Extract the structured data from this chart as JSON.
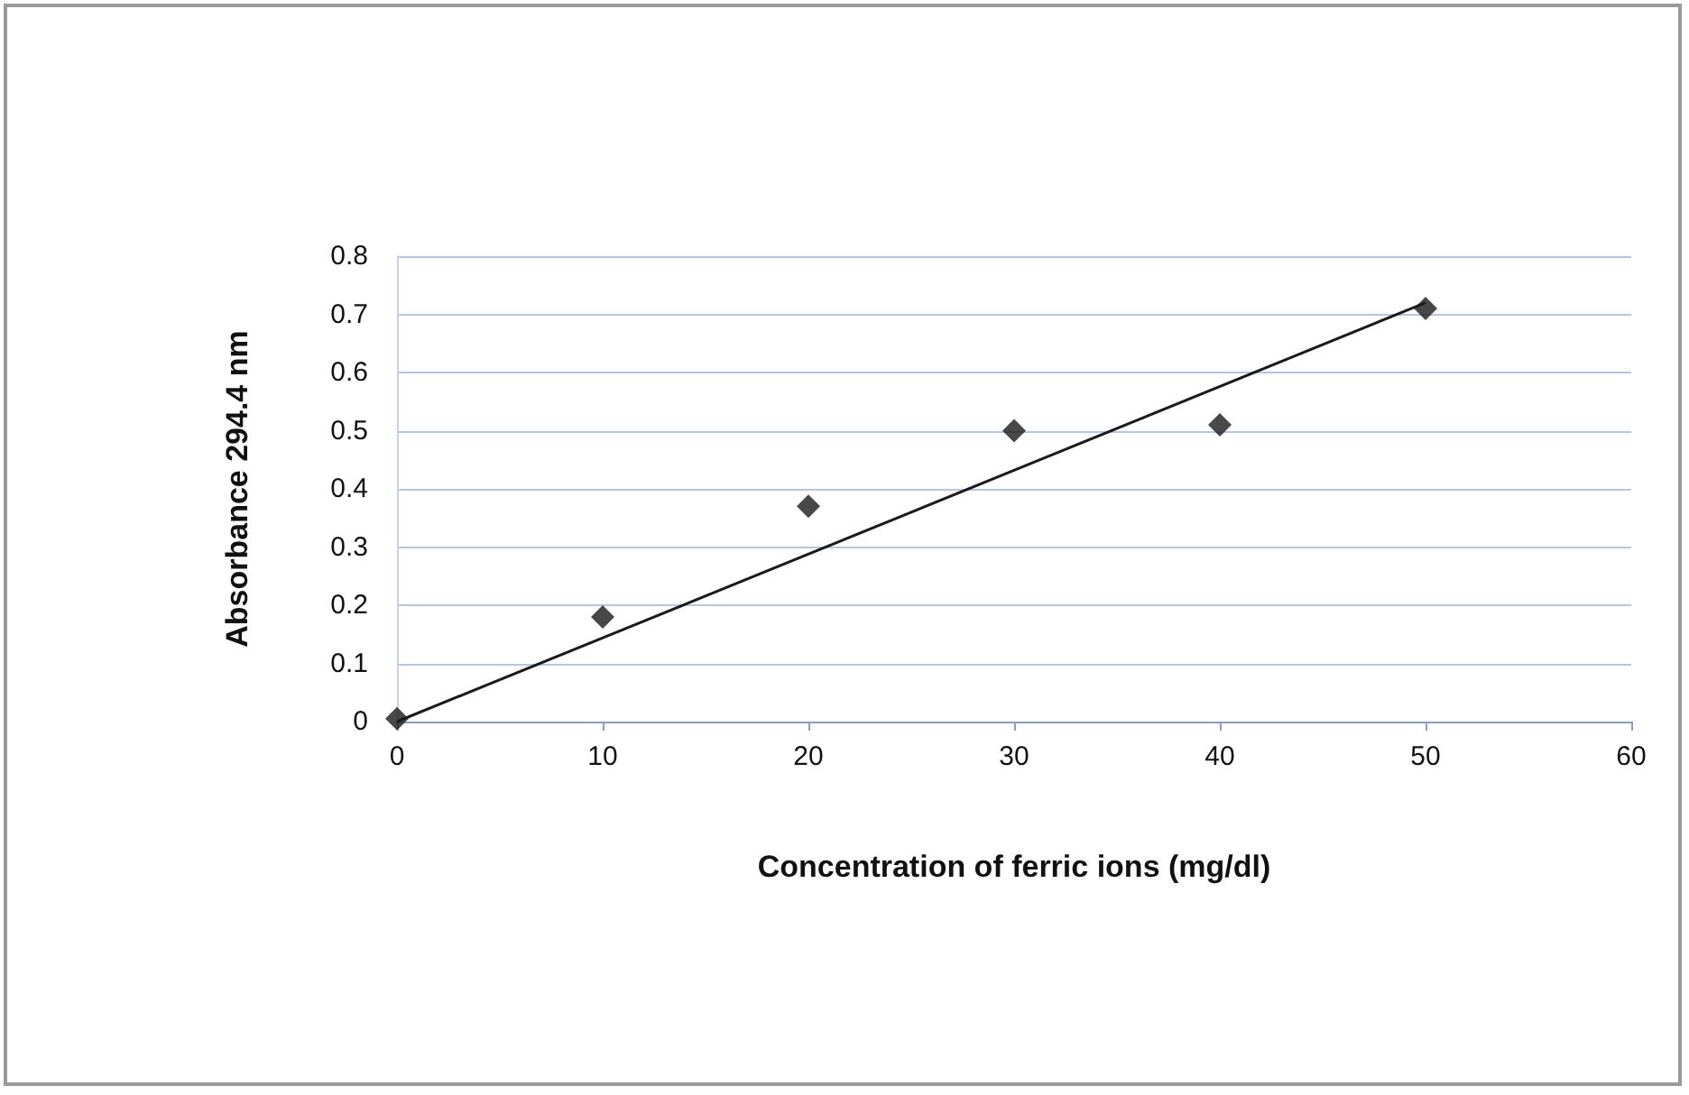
{
  "chart_data": {
    "type": "scatter",
    "xlabel": "Concentration of ferric ions (mg/dl)",
    "ylabel": "Absorbance 294.4 nm",
    "x": [
      0,
      10,
      20,
      30,
      40,
      50
    ],
    "series": [
      {
        "color": "#1a1a1a",
        "marker": "diamond",
        "values": [
          0.005,
          0.18,
          0.37,
          0.5,
          0.51,
          0.71
        ]
      },
      {
        "type": "line",
        "color": "#1a1a1a",
        "marker": "none",
        "line_style": "solid",
        "x": [
          0,
          50
        ],
        "values": [
          0,
          0.72
        ]
      }
    ],
    "xlim": [
      0,
      60
    ],
    "xticks": [
      0,
      10,
      20,
      30,
      40,
      50,
      60
    ],
    "ylim": [
      0,
      0.8
    ],
    "yticks": [
      0,
      0.1,
      0.2,
      0.3,
      0.4,
      0.5,
      0.6,
      0.7,
      0.8
    ],
    "grid": "y"
  }
}
